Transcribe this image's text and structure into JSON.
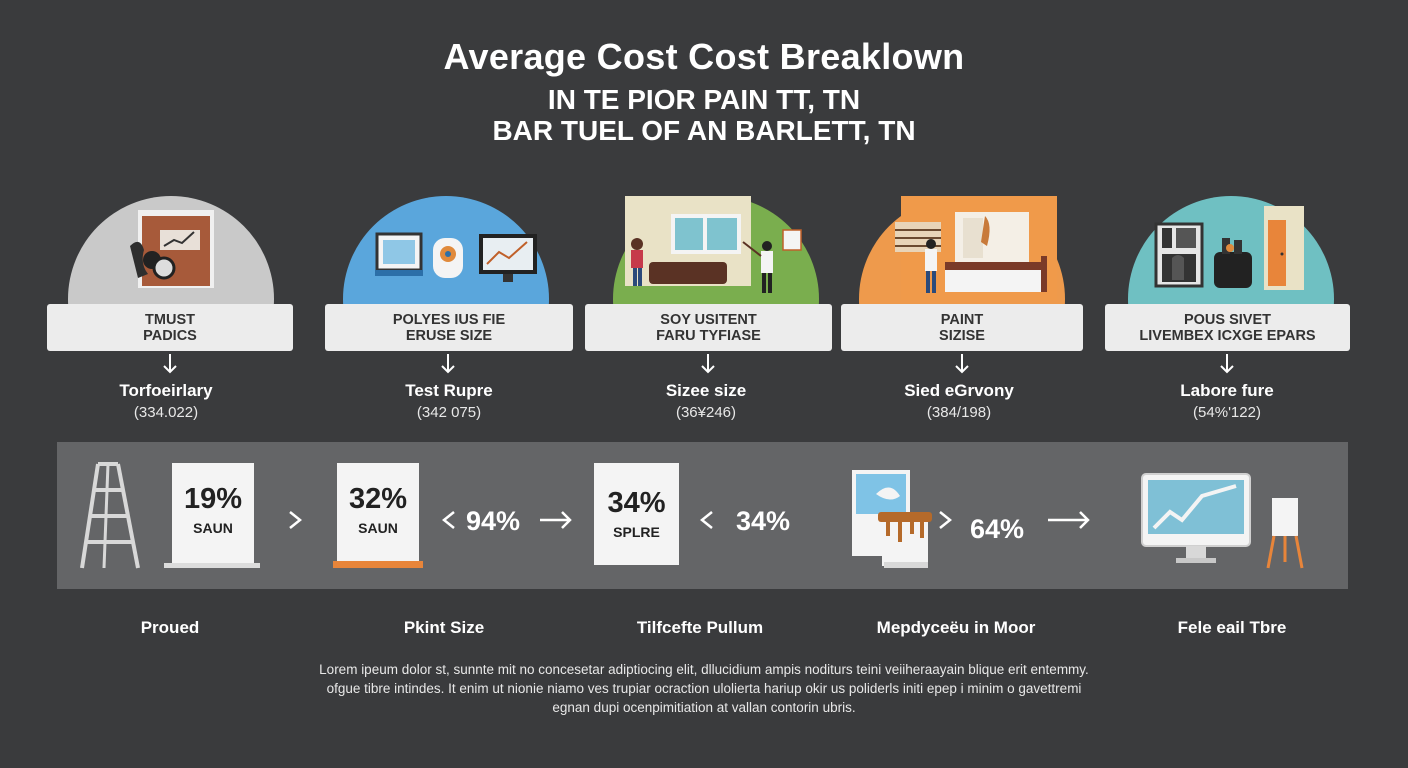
{
  "header": {
    "title": "Average Cost Cost Breaklown",
    "subtitle_1": "IN TE PIOR PAIN TT, TN",
    "subtitle_2": "BAR TUEL OF AN BARLETT, TN"
  },
  "categories": [
    {
      "box_line_1": "TMUST",
      "box_line_2": "PADICS",
      "name": "Torfoeirlary",
      "range": "(334.022)",
      "color": "#c9c9c9",
      "icon": "presentation-board-icon"
    },
    {
      "box_line_1": "POLYES IUS FIE",
      "box_line_2": "ERUSE SIZE",
      "name": "Test Rupre",
      "range": "(342 075)",
      "color": "#5aa6dc",
      "icon": "devices-icon"
    },
    {
      "box_line_1": "SOY USITENT",
      "box_line_2": "FARU TYFIASE",
      "name": "Sizee size",
      "range": "(36¥246)",
      "color": "#7aae4e",
      "icon": "living-room-icon"
    },
    {
      "box_line_1": "PAINT",
      "box_line_2": "SIZISE",
      "name": "Sied eGrvony",
      "range": "(384/198)",
      "color": "#ee9a4c",
      "icon": "bedroom-icon"
    },
    {
      "box_line_1": "POUS SIVET",
      "box_line_2": "LIVEMBEX ICXGE EPARS",
      "name": "Labore fure",
      "range": "(54%'122)",
      "color": "#6fc0c2",
      "icon": "kitchen-icon"
    }
  ],
  "breakdown": {
    "cards": [
      {
        "value": "19%",
        "label": "SAUN"
      },
      {
        "value": "32%",
        "label": "SAUN"
      },
      {
        "value": "34%",
        "label": "SPLRE"
      }
    ],
    "plain_values": [
      "94%",
      "34%",
      "64%"
    ],
    "labels": [
      "Proued",
      "Pkint Size",
      "Tilfcefte Pullum",
      "Mepdyceëu in Moor",
      "Fele eail Tbre"
    ]
  },
  "footer": {
    "line_1": "Lorem ipeum dolor st, sunnte mit no concesetar adiptiocing elit, dllucidium ampis noditurs teini veiiheraayain blique erit entemmy.",
    "line_2": "ofgue tibre intindes. It enim ut nionie niamo ves trupiar ocraction ulolierta hariup okir us poliderls initi epep i minim o gavettremi",
    "line_3": "egnan dupi ocenpimitiation at vallan contorin ubris."
  }
}
